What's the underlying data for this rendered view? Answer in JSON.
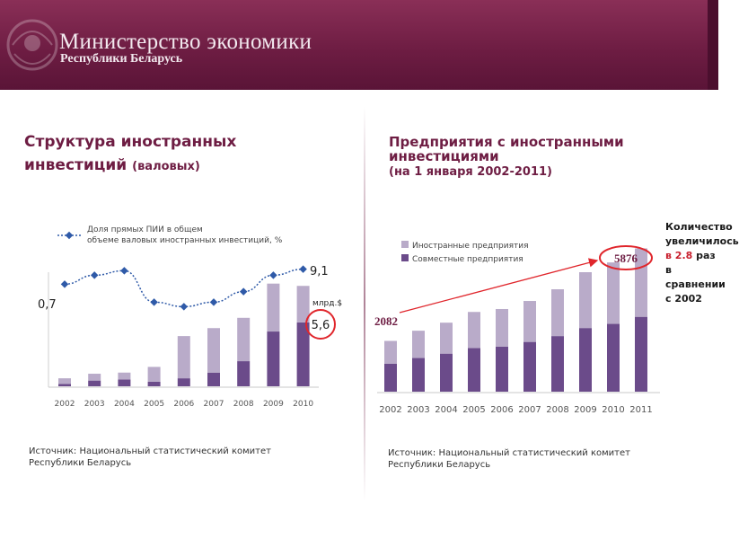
{
  "header": {
    "title": "Министерство экономики",
    "subtitle": "Республики Беларусь"
  },
  "left": {
    "title": "Структура иностранных инвестиций",
    "title_suffix": "(валовых)",
    "legend_line": "Доля прямых ПИИ в общем объеме валовых иностранных инвестиций, %",
    "annotation_low": "0,7",
    "annotation_high": "9,1",
    "unit_label": "млрд.$",
    "callout_value": "5,6",
    "source_line1": "Источник: Национальный статистический комитет",
    "source_line2": " Республики Беларусь"
  },
  "right": {
    "title": "Предприятия с иностранными инвестициями",
    "subtitle": "(на 1 января 2002-2011)",
    "callout_start": "2082",
    "callout_end": "5876",
    "note_part1": "Количество увеличилось",
    "note_highlight": "в 2.8",
    "note_part2": "раз в сравнении с 2002",
    "source_line1": "Источник: Национальный статистический комитет",
    "source_line2": " Республики Беларусь"
  },
  "colors": {
    "header": "#6e1d43",
    "title": "#6e1d43",
    "series_dark": "#6b4b8a",
    "series_light": "#b9abc9",
    "line": "#2f5aa8",
    "callout": "#e0262c"
  },
  "chart_data": [
    {
      "type": "bar",
      "stacked": true,
      "categories": [
        "2002",
        "2003",
        "2004",
        "2005",
        "2006",
        "2007",
        "2008",
        "2009",
        "2010"
      ],
      "series": [
        {
          "values": [
            0.1,
            0.25,
            0.3,
            0.2,
            0.35,
            0.6,
            1.1,
            2.4,
            2.8
          ]
        },
        {
          "values": [
            0.25,
            0.3,
            0.3,
            0.65,
            1.85,
            1.95,
            1.9,
            2.1,
            1.6
          ]
        }
      ],
      "line_series": {
        "name": "Доля прямых ПИИ в общем объеме валовых иностранных инвестиций, %",
        "values": [
          43,
          49,
          52,
          31,
          28,
          31,
          38,
          49,
          53
        ]
      },
      "ylim": [
        0,
        5
      ],
      "grid": false,
      "legend": "top"
    },
    {
      "type": "bar",
      "stacked": true,
      "categories": [
        "2002",
        "2003",
        "2004",
        "2005",
        "2006",
        "2007",
        "2008",
        "2009",
        "2010",
        "2011"
      ],
      "series": [
        {
          "name": "Совместные предприятия",
          "values": [
            1150,
            1380,
            1560,
            1790,
            1850,
            2040,
            2280,
            2610,
            2780,
            3070
          ]
        },
        {
          "name": "Иностранные предприятия",
          "values": [
            932,
            1120,
            1270,
            1480,
            1540,
            1680,
            1920,
            2290,
            2520,
            2806
          ]
        }
      ],
      "ylim": [
        0,
        7000
      ],
      "grid": false,
      "legend": "top-left"
    }
  ]
}
